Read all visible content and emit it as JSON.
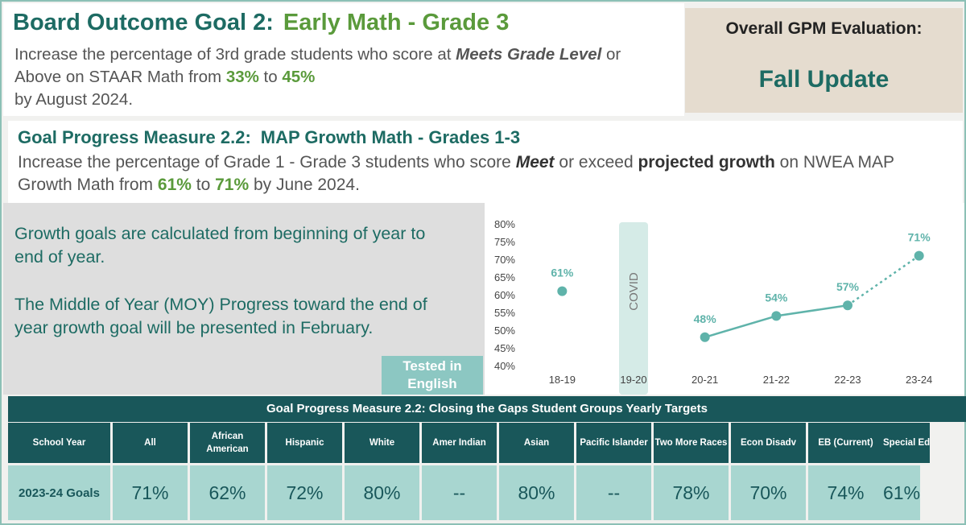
{
  "header": {
    "title": "Board Outcome Goal 2:",
    "subtitle": "Early Math - Grade 3",
    "desc_part1": "Increase the percentage of 3rd grade students who score at ",
    "desc_em": "Meets Grade Level",
    "desc_part2": " or Above on STAAR Math from ",
    "desc_from": "33%",
    "desc_to_word": " to ",
    "desc_to": "45%",
    "desc_end": "by August 2024."
  },
  "evaluation": {
    "label": "Overall GPM Evaluation:",
    "value": "Fall Update"
  },
  "gpm": {
    "title": "Goal Progress Measure 2.2:",
    "subtitle": "MAP Growth Math - Grades 1-3",
    "desc_part1": "Increase the percentage of Grade 1 - Grade 3 students who score ",
    "desc_meet": "Meet",
    "desc_part2": " or exceed ",
    "desc_bold": "projected growth",
    "desc_part3": " on NWEA MAP Growth Math from ",
    "desc_from": "61%",
    "desc_to_word": " to ",
    "desc_to": "71%",
    "desc_end": " by June 2024."
  },
  "notes": {
    "text1": "Growth goals are calculated from beginning of year to end of year.",
    "text2": "The Middle of Year (MOY) Progress toward the end of year growth goal will be presented in February.",
    "tested_label": "Tested in English"
  },
  "chart_data": {
    "type": "line",
    "categories": [
      "18-19",
      "19-20",
      "20-21",
      "21-22",
      "22-23",
      "23-24"
    ],
    "y_ticks": [
      "80%",
      "75%",
      "70%",
      "65%",
      "60%",
      "55%",
      "50%",
      "45%",
      "40%"
    ],
    "ylim": [
      40,
      80
    ],
    "points": [
      {
        "x": "18-19",
        "y": 61,
        "label": "61%",
        "connected": false
      },
      {
        "x": "20-21",
        "y": 48,
        "label": "48%",
        "connected": true
      },
      {
        "x": "21-22",
        "y": 54,
        "label": "54%",
        "connected": true
      },
      {
        "x": "22-23",
        "y": 57,
        "label": "57%",
        "connected": true
      },
      {
        "x": "23-24",
        "y": 71,
        "label": "71%",
        "target": true
      }
    ],
    "annotation": {
      "x": "19-20",
      "text": "COVID"
    },
    "colors": {
      "line": "#5fb3aa",
      "covid_bar": "#d5ebe7",
      "label": "#5fb3aa",
      "axis_text": "#444444"
    },
    "grid": false
  },
  "table": {
    "title": "Goal Progress Measure 2.2: Closing the Gaps Student Groups Yearly Targets",
    "headers": [
      "School Year",
      "All",
      "African American",
      "Hispanic",
      "White",
      "Amer Indian",
      "Asian",
      "Pacific Islander",
      "Two More Races",
      "Econ Disadv",
      "EB (Current)",
      "Special Ed"
    ],
    "row": [
      "2023-24 Goals",
      "71%",
      "62%",
      "72%",
      "80%",
      "--",
      "80%",
      "--",
      "78%",
      "70%",
      "74%",
      "61%"
    ]
  },
  "colors": {
    "dark_teal": "#19575a",
    "teal_text": "#1d6b63",
    "green": "#5a9a3b",
    "light_teal": "#a8d6d0",
    "eval_bg": "#e5dccf"
  }
}
